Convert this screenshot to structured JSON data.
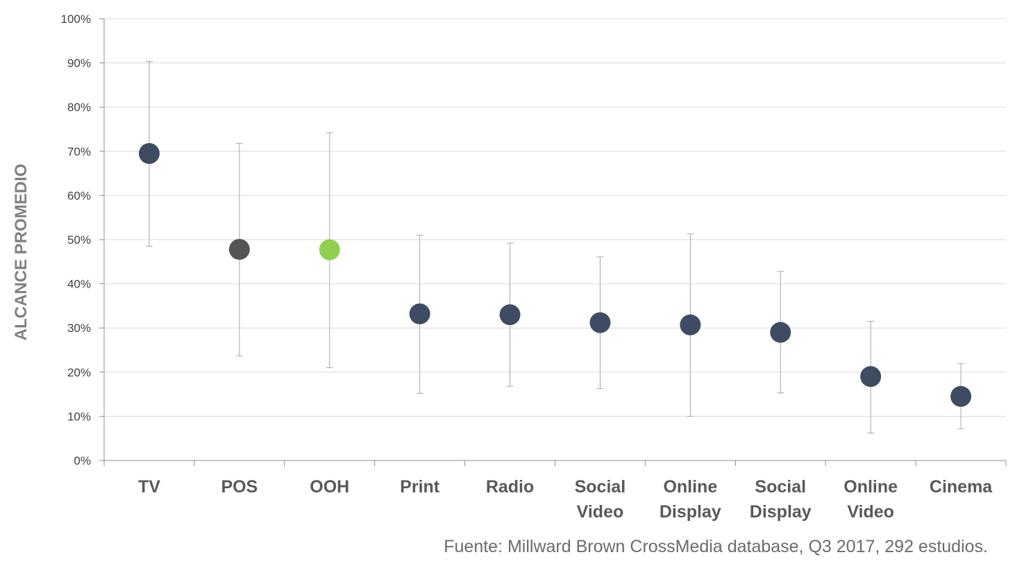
{
  "chart_data": {
    "type": "scatter",
    "title": "",
    "xlabel": "",
    "ylabel": "ALCANCE PROMEDIO",
    "ylim": [
      0,
      100
    ],
    "y_ticks": [
      "0%",
      "10%",
      "20%",
      "30%",
      "40%",
      "50%",
      "60%",
      "70%",
      "80%",
      "90%",
      "100%"
    ],
    "grid": "horizontal",
    "categories": [
      [
        "TV"
      ],
      [
        "POS"
      ],
      [
        "OOH"
      ],
      [
        "Print"
      ],
      [
        "Radio"
      ],
      [
        "Social",
        "Video"
      ],
      [
        "Online",
        "Display"
      ],
      [
        "Social",
        "Display"
      ],
      [
        "Online",
        "Video"
      ],
      [
        "Cinema"
      ]
    ],
    "values": [
      69.5,
      47.8,
      47.7,
      33.2,
      33.0,
      31.2,
      30.7,
      29.0,
      19.0,
      14.5
    ],
    "error_low": [
      48.5,
      23.7,
      21.0,
      15.2,
      16.8,
      16.3,
      10.0,
      15.3,
      6.2,
      7.2
    ],
    "error_high": [
      90.3,
      71.8,
      74.2,
      51.0,
      49.2,
      46.1,
      51.3,
      42.8,
      31.5,
      21.9
    ],
    "point_colors": [
      "#3e4c63",
      "#545454",
      "#8fd14f",
      "#3e4c63",
      "#3e4c63",
      "#3e4c63",
      "#3e4c63",
      "#3e4c63",
      "#3e4c63",
      "#3e4c63"
    ],
    "axis_color": "#8c8c8c",
    "gridline_color": "#d9d9d9",
    "errorbar_color": "#a6a6a6"
  },
  "source_note": "Fuente: Millward Brown CrossMedia database, Q3 2017, 292 estudios."
}
